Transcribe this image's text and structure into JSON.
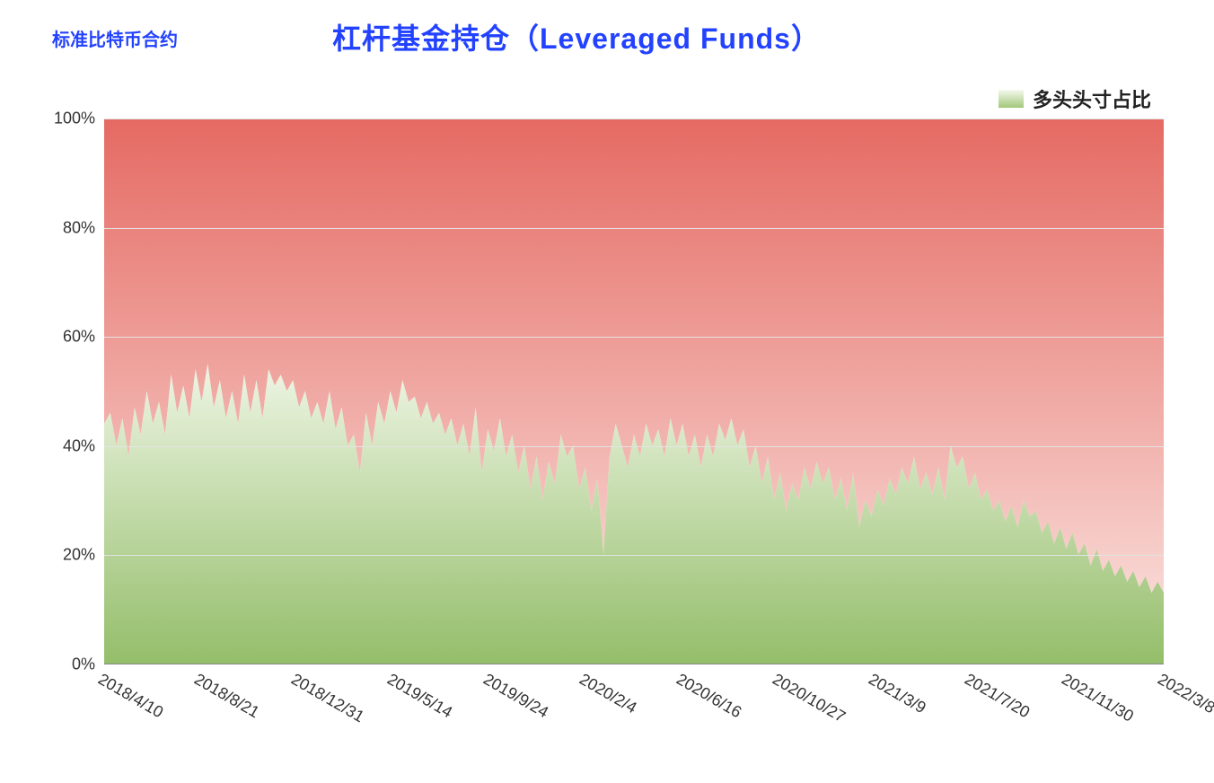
{
  "header": {
    "subtitle": "标准比特币合约",
    "subtitle_color": "#2342ff",
    "title": "杠杆基金持仓（Leveraged Funds）",
    "title_color": "#2342ff"
  },
  "legend": {
    "label": "多头头寸占比",
    "swatch_gradient_top": "#f4f9ee",
    "swatch_gradient_bottom": "#a3c77a",
    "label_color": "#222222"
  },
  "chart": {
    "type": "area",
    "y_unit": "%",
    "ylim": [
      0,
      100
    ],
    "yticks": [
      0,
      20,
      40,
      60,
      80,
      100
    ],
    "xticks": [
      "2018/4/10",
      "2018/8/21",
      "2018/12/31",
      "2019/5/14",
      "2019/9/24",
      "2020/2/4",
      "2020/6/16",
      "2020/10/27",
      "2021/3/9",
      "2021/7/20",
      "2021/11/30",
      "2022/3/8"
    ],
    "x_tick_rotation_deg": 30,
    "tick_fontsize": 18,
    "tick_color": "#333333",
    "grid_color": "#e3e3e3",
    "axis_color": "#888888",
    "background_top_gradient": {
      "from": "#e56a63",
      "to": "#f8d6d2"
    },
    "green_gradient": {
      "from": "#eef5e4",
      "to": "#94be6a"
    },
    "series": {
      "name": "多头头寸占比",
      "values": [
        44,
        46,
        40,
        45,
        38,
        47,
        42,
        50,
        44,
        48,
        42,
        53,
        46,
        51,
        45,
        54,
        48,
        55,
        47,
        52,
        45,
        50,
        44,
        53,
        46,
        52,
        45,
        54,
        51,
        53,
        50,
        52,
        47,
        50,
        45,
        48,
        44,
        50,
        43,
        47,
        40,
        42,
        35,
        46,
        40,
        48,
        44,
        50,
        46,
        52,
        48,
        49,
        45,
        48,
        44,
        46,
        42,
        45,
        40,
        44,
        38,
        47,
        35,
        43,
        39,
        45,
        38,
        42,
        35,
        40,
        32,
        38,
        30,
        37,
        33,
        42,
        38,
        40,
        32,
        36,
        28,
        34,
        20,
        38,
        44,
        40,
        36,
        42,
        38,
        44,
        40,
        43,
        38,
        45,
        40,
        44,
        38,
        42,
        36,
        42,
        38,
        44,
        41,
        45,
        40,
        43,
        36,
        40,
        33,
        38,
        30,
        35,
        28,
        33,
        30,
        36,
        32,
        37,
        33,
        36,
        30,
        34,
        28,
        35,
        25,
        30,
        27,
        32,
        29,
        34,
        31,
        36,
        33,
        38,
        32,
        35,
        31,
        36,
        30,
        40,
        36,
        38,
        32,
        35,
        30,
        32,
        28,
        30,
        26,
        29,
        25,
        30,
        27,
        28,
        24,
        26,
        22,
        25,
        21,
        24,
        20,
        22,
        18,
        21,
        17,
        19,
        16,
        18,
        15,
        17,
        14,
        16,
        13,
        15,
        13
      ]
    }
  }
}
